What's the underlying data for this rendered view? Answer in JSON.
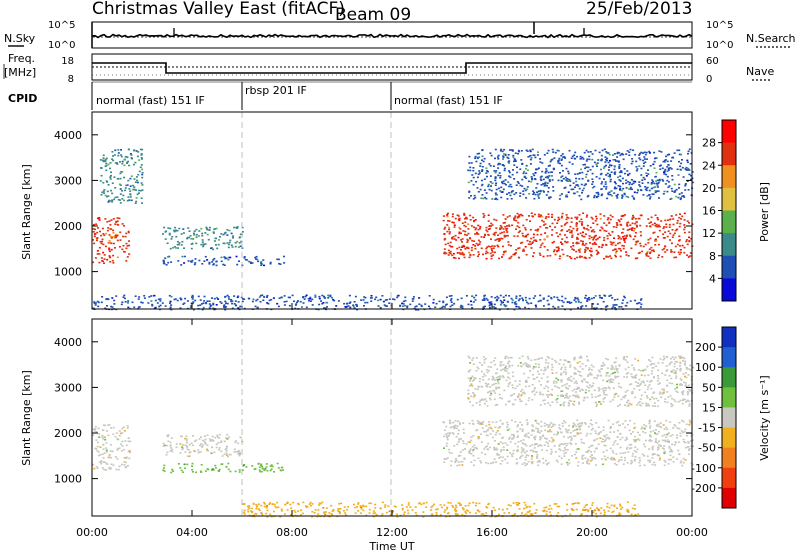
{
  "header": {
    "station": "Christmas Valley East (fitACF)",
    "beam": "Beam 09",
    "date": "25/Feb/2013"
  },
  "noise_panel": {
    "left_label": "N.Sky",
    "right_label": "N.Search",
    "left_ticks": [
      "10^5",
      "10^0"
    ],
    "right_ticks": [
      "10^5",
      "10^0"
    ]
  },
  "freq_panel": {
    "left_label_1": "Freq.",
    "left_label_2": "[MHz]",
    "right_label": "Nave",
    "left_ticks": [
      "18",
      "8"
    ],
    "right_ticks": [
      "60",
      "0"
    ]
  },
  "cpid_panel": {
    "label": "CPID",
    "segments": [
      {
        "label": "normal (fast) 151 IF",
        "start_hour": 0,
        "end_hour": 6
      },
      {
        "label": "rbsp 201 IF",
        "start_hour": 6,
        "end_hour": 12
      },
      {
        "label": "normal (fast) 151 IF",
        "start_hour": 12,
        "end_hour": 24
      }
    ]
  },
  "chart_data": [
    {
      "type": "heatmap",
      "title": "Power",
      "ylabel": "Slant Range [km]",
      "ylim": [
        180,
        4500
      ],
      "y_ticks": [
        "1000",
        "2000",
        "3000",
        "4000"
      ],
      "colorbar_label": "Power [dB]",
      "colorbar_ticks": [
        "4",
        "8",
        "12",
        "16",
        "20",
        "24",
        "28"
      ],
      "colorbar_colors": [
        "#0a0ad8",
        "#1f4fb5",
        "#3a8a8a",
        "#5ab04a",
        "#e0c040",
        "#f09020",
        "#e03010",
        "#ff0000"
      ],
      "echo_regions": [
        {
          "t_start": 0.0,
          "t_end": 1.5,
          "range_low": 1200,
          "range_high": 2200,
          "power_db": 26
        },
        {
          "t_start": 0.3,
          "t_end": 2.0,
          "range_low": 2500,
          "range_high": 3700,
          "power_db": 10
        },
        {
          "t_start": 2.8,
          "t_end": 6.0,
          "range_low": 1500,
          "range_high": 2000,
          "power_db": 11
        },
        {
          "t_start": 2.8,
          "t_end": 7.7,
          "range_low": 1150,
          "range_high": 1350,
          "power_db": 7
        },
        {
          "t_start": 14.0,
          "t_end": 24.0,
          "range_low": 1300,
          "range_high": 2300,
          "power_db": 28
        },
        {
          "t_start": 15.0,
          "t_end": 24.0,
          "range_low": 2600,
          "range_high": 3700,
          "power_db": 8
        },
        {
          "t_start": 0.0,
          "t_end": 22.0,
          "range_low": 180,
          "range_high": 500,
          "power_db": 6
        }
      ]
    },
    {
      "type": "heatmap",
      "title": "Velocity",
      "xlabel": "Time UT",
      "ylabel": "Slant Range [km]",
      "ylim": [
        180,
        4500
      ],
      "y_ticks": [
        "1000",
        "2000",
        "3000",
        "4000"
      ],
      "x_ticks": [
        "00:00",
        "04:00",
        "08:00",
        "12:00",
        "16:00",
        "20:00",
        "00:00"
      ],
      "colorbar_label": "Velocity [m s⁻¹]",
      "colorbar_ticks": [
        "200",
        "100",
        "50",
        "15",
        "-15",
        "-50",
        "-100",
        "-200"
      ],
      "colorbar_colors": [
        "#1030c0",
        "#2060d0",
        "#3a9a3a",
        "#70c040",
        "#c8c8c0",
        "#f0b020",
        "#f08020",
        "#f04010",
        "#e00000"
      ],
      "echo_regions": [
        {
          "t_start": 0.0,
          "t_end": 1.5,
          "range_low": 1200,
          "range_high": 2200,
          "velocity_ms": 0
        },
        {
          "t_start": 2.8,
          "t_end": 6.0,
          "range_low": 1500,
          "range_high": 2000,
          "velocity_ms": 0
        },
        {
          "t_start": 2.8,
          "t_end": 7.7,
          "range_low": 1150,
          "range_high": 1350,
          "velocity_ms": 40
        },
        {
          "t_start": 14.0,
          "t_end": 24.0,
          "range_low": 1300,
          "range_high": 2300,
          "velocity_ms": 0
        },
        {
          "t_start": 15.0,
          "t_end": 24.0,
          "range_low": 2600,
          "range_high": 3700,
          "velocity_ms": 0
        },
        {
          "t_start": 6.0,
          "t_end": 22.0,
          "range_low": 180,
          "range_high": 500,
          "velocity_ms": -40
        }
      ]
    }
  ]
}
